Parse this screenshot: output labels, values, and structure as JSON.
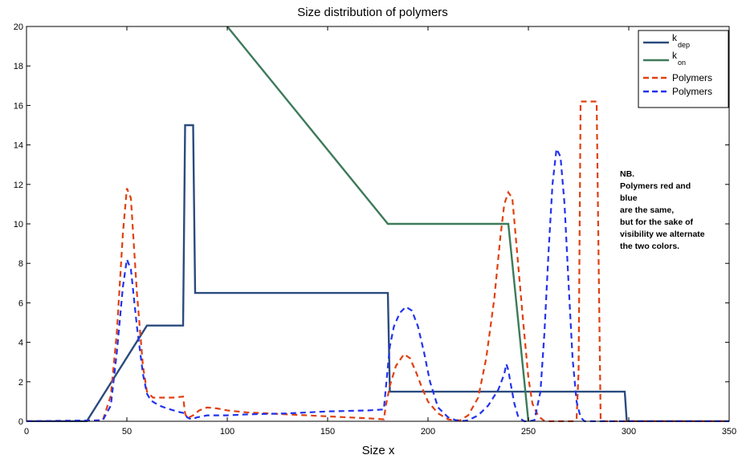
{
  "chart_data": {
    "type": "line",
    "title": "Size distribution of polymers",
    "xlabel": "Size x",
    "ylabel": "",
    "xlim": [
      0,
      350
    ],
    "ylim": [
      0,
      20
    ],
    "xticks": [
      0,
      50,
      100,
      150,
      200,
      250,
      300,
      350
    ],
    "yticks": [
      0,
      2,
      4,
      6,
      8,
      10,
      12,
      14,
      16,
      18,
      20
    ],
    "legend_placement": "top-right",
    "grid": false,
    "series": [
      {
        "name": "k_dep",
        "legend_main": "k",
        "legend_sub": "dep",
        "color": "#2b4b7e",
        "dash": "solid",
        "x": [
          0,
          30,
          60,
          78,
          79,
          83,
          84,
          180,
          181,
          298,
          299,
          350
        ],
        "y": [
          0,
          0,
          4.85,
          4.85,
          15,
          15,
          6.5,
          6.5,
          1.5,
          1.5,
          0,
          0
        ]
      },
      {
        "name": "k_on",
        "legend_main": "k",
        "legend_sub": "on",
        "color": "#3d7a5a",
        "dash": "solid",
        "x": [
          100,
          180,
          240,
          250
        ],
        "y": [
          20,
          10,
          10,
          0
        ]
      },
      {
        "name": "Polymers",
        "color": "#e04010",
        "dash": "dashed",
        "x": [
          0,
          38,
          42,
          45,
          48,
          50,
          52,
          55,
          58,
          60,
          63,
          67,
          70,
          73,
          78,
          79,
          80,
          83,
          86,
          90,
          95,
          100,
          110,
          130,
          150,
          170,
          178,
          179,
          181,
          184,
          188,
          191,
          194,
          197,
          200,
          205,
          210,
          213,
          216,
          220,
          225,
          229,
          233,
          236,
          238,
          240,
          242,
          244,
          247,
          250,
          252,
          255,
          258,
          260,
          262,
          264,
          266,
          268,
          270,
          272,
          274,
          275,
          276,
          280,
          284,
          285,
          286,
          300,
          350
        ],
        "y": [
          0,
          0.05,
          1.3,
          4.5,
          9.5,
          11.8,
          11.3,
          6.5,
          2.8,
          1.5,
          1.2,
          1.2,
          1.2,
          1.2,
          1.25,
          0.4,
          0.15,
          0.3,
          0.55,
          0.7,
          0.65,
          0.55,
          0.45,
          0.35,
          0.25,
          0.15,
          0.1,
          0.8,
          1.8,
          2.8,
          3.4,
          3.2,
          2.5,
          1.7,
          1.0,
          0.4,
          0.1,
          0.05,
          0.05,
          0.3,
          1.2,
          3.2,
          6.2,
          9.3,
          11,
          11.6,
          11.3,
          9,
          5.5,
          2.2,
          0.9,
          0.25,
          0.02,
          0,
          0,
          0,
          0,
          0,
          0,
          0,
          0.1,
          2.5,
          16.2,
          16.2,
          16.2,
          8,
          0,
          0,
          0
        ]
      },
      {
        "name": "Polymers",
        "color": "#2233ee",
        "dash": "dashed",
        "x": [
          0,
          38,
          42,
          45,
          48,
          50,
          52,
          55,
          58,
          60,
          62,
          66,
          70,
          75,
          79,
          80,
          82,
          85,
          90,
          95,
          100,
          110,
          130,
          150,
          170,
          178,
          179,
          181,
          183,
          186,
          189,
          192,
          195,
          198,
          201,
          205,
          210,
          214,
          218,
          220,
          225,
          230,
          235,
          238,
          239,
          240,
          241,
          243,
          245,
          248,
          250,
          253,
          256,
          258,
          260,
          262,
          264,
          266,
          268,
          270,
          272,
          274,
          276,
          278,
          280,
          300,
          350
        ],
        "y": [
          0,
          0.05,
          0.8,
          3.5,
          6.8,
          8.2,
          7.7,
          4.8,
          2.4,
          1.4,
          1.05,
          0.8,
          0.65,
          0.5,
          0.4,
          0.2,
          0.1,
          0.2,
          0.3,
          0.3,
          0.3,
          0.35,
          0.4,
          0.5,
          0.55,
          0.6,
          1.7,
          3.8,
          4.8,
          5.5,
          5.8,
          5.6,
          4.8,
          3.5,
          2.0,
          0.7,
          0.2,
          0.05,
          0.02,
          0.05,
          0.3,
          0.8,
          1.6,
          2.4,
          2.9,
          2.6,
          2.0,
          0.9,
          0.2,
          0,
          0,
          0.05,
          1.5,
          4.5,
          8.5,
          12,
          13.8,
          13.4,
          11,
          7,
          3.2,
          1,
          0.2,
          0,
          0,
          0,
          0
        ]
      }
    ],
    "note_lines": [
      "NB.",
      "Polymers red and",
      "blue",
      "are the same,",
      "but for the sake of",
      "visibility we alternate",
      "the two colors."
    ]
  }
}
